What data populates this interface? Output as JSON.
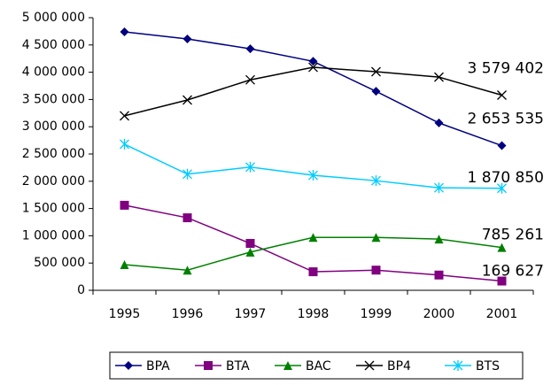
{
  "chart_data": {
    "type": "line",
    "categories": [
      "1995",
      "1996",
      "1997",
      "1998",
      "1999",
      "2000",
      "2001"
    ],
    "series": [
      {
        "name": "BPA",
        "color": "#000080",
        "marker": "diamond",
        "values": [
          4740000,
          4610000,
          4430000,
          4200000,
          3650000,
          3070000,
          2653535
        ],
        "value_labels": [
          null,
          null,
          null,
          null,
          null,
          null,
          "2 653 535"
        ]
      },
      {
        "name": "BTA",
        "color": "#800080",
        "marker": "square",
        "values": [
          1560000,
          1330000,
          860000,
          340000,
          370000,
          280000,
          169627
        ],
        "value_labels": [
          null,
          null,
          null,
          null,
          null,
          null,
          "169 627"
        ]
      },
      {
        "name": "BAC",
        "color": "#008000",
        "marker": "triangle",
        "values": [
          470000,
          370000,
          700000,
          970000,
          970000,
          940000,
          785261
        ],
        "value_labels": [
          null,
          null,
          null,
          null,
          null,
          null,
          "785 261"
        ]
      },
      {
        "name": "BP4",
        "color": "#000000",
        "marker": "x",
        "values": [
          3200000,
          3490000,
          3860000,
          4090000,
          4010000,
          3910000,
          3579402
        ],
        "value_labels": [
          null,
          null,
          null,
          null,
          null,
          null,
          "3 579 402"
        ]
      },
      {
        "name": "BTS",
        "color": "#00ccff",
        "marker": "asterisk",
        "values": [
          2680000,
          2130000,
          2260000,
          2110000,
          2010000,
          1880000,
          1870850
        ],
        "value_labels": [
          null,
          null,
          null,
          null,
          null,
          null,
          "1 870 850"
        ]
      }
    ],
    "ylim": [
      0,
      5000000
    ],
    "yticks": [
      0,
      {
        "value": 500000,
        "label": "500 000"
      },
      {
        "value": 1000000,
        "label": "1 000 000"
      },
      {
        "value": 1500000,
        "label": "1 500 000"
      },
      {
        "value": 2000000,
        "label": "2 000 000"
      },
      {
        "value": 2500000,
        "label": "2 500 000"
      },
      {
        "value": 3000000,
        "label": "3 000 000"
      },
      {
        "value": 3500000,
        "label": "3 500 000"
      },
      {
        "value": 4000000,
        "label": "4 000 000"
      },
      {
        "value": 4500000,
        "label": "4 500 000"
      },
      {
        "value": 5000000,
        "label": "5 000 000"
      }
    ],
    "grid": false,
    "legend": "bottom"
  }
}
